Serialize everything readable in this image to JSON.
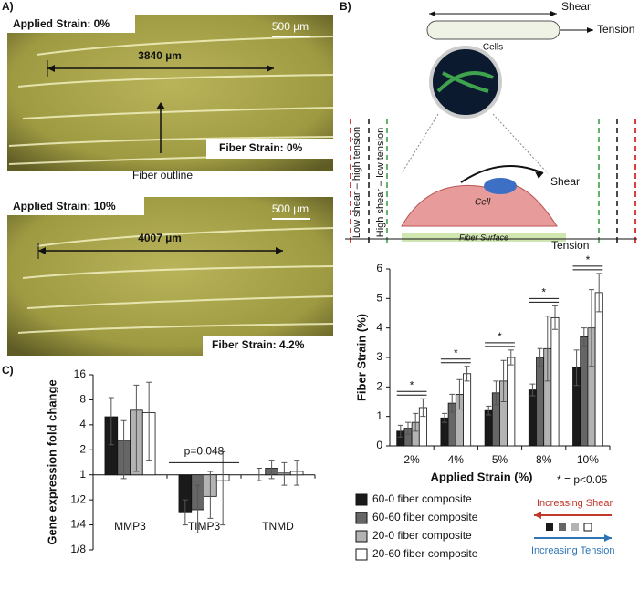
{
  "panel_a": {
    "label": "A)",
    "top": {
      "applied": "Applied Strain: 0%",
      "scale": "500 µm",
      "length": "3840 µm",
      "fiber": "Fiber Strain: 0%"
    },
    "outline": "Fiber outline",
    "bottom": {
      "applied": "Applied Strain: 10%",
      "scale": "500 µm",
      "length": "4007 µm",
      "fiber": "Fiber Strain: 4.2%"
    }
  },
  "panel_b": {
    "label": "B)",
    "shear": "Shear",
    "tension": "Tension",
    "cells": "Cells",
    "low_shear": "Low shear – high tension",
    "high_shear": "High shear – low tension",
    "cell": "Cell",
    "cell_shear": "Shear",
    "surface": "Fiber Surface",
    "cell_tension": "Tension"
  },
  "panel_c": {
    "label": "C)"
  },
  "key": {
    "increasing_shear": "Increasing Shear",
    "increasing_tension": "Increasing Tension"
  },
  "chart_data": [
    {
      "type": "bar",
      "y_label": "Gene expression fold change",
      "annotation": "p=0.048",
      "categories": [
        "MMP3",
        "TIMP3",
        "TNMD"
      ],
      "log_scale": true,
      "base": 2,
      "ylim": [
        0.125,
        16
      ],
      "yticks": [
        {
          "value": 0.125,
          "label": "1/8"
        },
        {
          "value": 0.25,
          "label": "1/4"
        },
        {
          "value": 0.5,
          "label": "1/2"
        },
        1,
        2,
        4,
        8,
        16
      ],
      "series": [
        {
          "color": "#1a1a1a",
          "values": [
            5,
            0.35,
            1.0
          ],
          "error_range": [
            [
              2.3,
              8.5
            ],
            [
              0.25,
              0.5
            ],
            [
              0.85,
              1.2
            ]
          ]
        },
        {
          "color": "#666666",
          "values": [
            2.6,
            0.38,
            1.2
          ],
          "error_range": [
            [
              0.9,
              4.5
            ],
            [
              0.2,
              0.75
            ],
            [
              0.9,
              1.5
            ]
          ]
        },
        {
          "color": "#b3b3b3",
          "values": [
            6,
            0.55,
            1.05
          ],
          "error_range": [
            [
              1.1,
              12
            ],
            [
              0.3,
              1.1
            ],
            [
              0.75,
              1.4
            ]
          ]
        },
        {
          "color": "#ffffff",
          "values": [
            5.6,
            0.85,
            1.1
          ],
          "error_range": [
            [
              1.5,
              13
            ],
            [
              0.25,
              1.9
            ],
            [
              0.75,
              1.5
            ]
          ]
        }
      ]
    },
    {
      "type": "bar",
      "x_label": "Applied Strain (%)",
      "y_label": "Fiber Strain (%)",
      "note": "* = p<0.05",
      "categories": [
        "2%",
        "4%",
        "5%",
        "8%",
        "10%"
      ],
      "significance": [
        "*",
        "*",
        "*",
        "*",
        "*"
      ],
      "ylim": [
        0,
        6
      ],
      "yticks": [
        0,
        1,
        2,
        3,
        4,
        5,
        6
      ],
      "series": [
        {
          "name": "60-0 fiber composite",
          "color": "#1a1a1a",
          "values": [
            0.5,
            0.95,
            1.2,
            1.9,
            2.65
          ],
          "errors": [
            0.2,
            0.15,
            0.15,
            0.2,
            0.6
          ]
        },
        {
          "name": "60-60 fiber composite",
          "color": "#666666",
          "values": [
            0.6,
            1.45,
            1.8,
            3.0,
            3.7
          ],
          "errors": [
            0.2,
            0.3,
            0.4,
            0.3,
            0.3
          ]
        },
        {
          "name": "20-0 fiber composite",
          "color": "#b3b3b3",
          "values": [
            0.8,
            1.75,
            2.2,
            3.3,
            4.0
          ],
          "errors": [
            0.3,
            0.5,
            0.7,
            1.1,
            1.3
          ]
        },
        {
          "name": "20-60 fiber composite",
          "color": "#ffffff",
          "values": [
            1.3,
            2.45,
            3.0,
            4.35,
            5.2
          ],
          "errors": [
            0.3,
            0.25,
            0.25,
            0.4,
            0.65
          ]
        }
      ]
    }
  ]
}
